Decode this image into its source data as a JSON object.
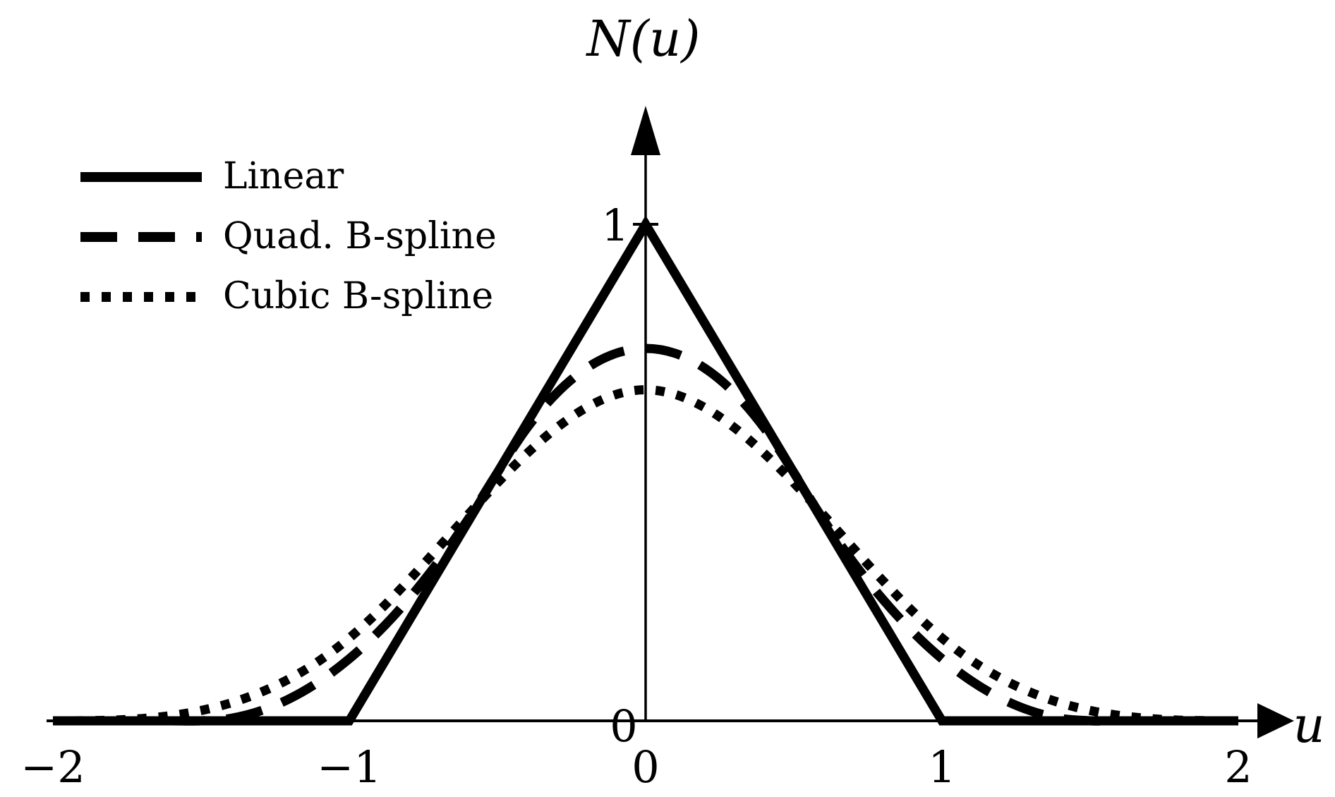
{
  "figure": {
    "background": "#ffffff",
    "axis_color": "#000000",
    "curve_color": "#000000"
  },
  "labels": {
    "y_axis_title": "N(u)",
    "x_axis_title": "u",
    "y_tick_1": "1",
    "y_tick_0": "0",
    "x_ticks": [
      "−2",
      "−1",
      "0",
      "1",
      "2"
    ]
  },
  "legend": {
    "position": "top-left",
    "items": [
      {
        "label": "Linear",
        "style": "solid"
      },
      {
        "label": "Quad. B-spline",
        "style": "dashed"
      },
      {
        "label": "Cubic B-spline",
        "style": "dotted"
      }
    ]
  },
  "chart_data": {
    "type": "line",
    "title": "",
    "xlabel": "u",
    "ylabel": "N(u)",
    "xlim": [
      -2,
      2
    ],
    "ylim": [
      0,
      1.25
    ],
    "x_tick_values": [
      -2,
      -1,
      0,
      1,
      2
    ],
    "y_tick_values": [
      0,
      1
    ],
    "grid": false,
    "legend_position": "top-left",
    "series": [
      {
        "name": "Linear",
        "style": "solid",
        "smooth": false,
        "peak": 1.0,
        "support": [
          -1,
          1
        ],
        "points": [
          [
            -2,
            0
          ],
          [
            -1,
            0
          ],
          [
            0,
            1
          ],
          [
            1,
            0
          ],
          [
            2,
            0
          ]
        ]
      },
      {
        "name": "Quad. B-spline",
        "style": "dashed",
        "smooth": true,
        "peak": 0.75,
        "support": [
          -1.5,
          1.5
        ],
        "points": [
          [
            -2,
            0
          ],
          [
            -1.9,
            0
          ],
          [
            -1.8,
            0
          ],
          [
            -1.7,
            0
          ],
          [
            -1.6,
            0
          ],
          [
            -1.5,
            0
          ],
          [
            -1.4,
            0.005
          ],
          [
            -1.3,
            0.02
          ],
          [
            -1.2,
            0.045
          ],
          [
            -1.1,
            0.08
          ],
          [
            -1,
            0.125
          ],
          [
            -0.9,
            0.18
          ],
          [
            -0.8,
            0.245
          ],
          [
            -0.7,
            0.32
          ],
          [
            -0.6,
            0.405
          ],
          [
            -0.5,
            0.5
          ],
          [
            -0.4,
            0.59
          ],
          [
            -0.3,
            0.66
          ],
          [
            -0.2,
            0.71
          ],
          [
            -0.1,
            0.74
          ],
          [
            0,
            0.75
          ],
          [
            0.1,
            0.74
          ],
          [
            0.2,
            0.71
          ],
          [
            0.3,
            0.66
          ],
          [
            0.4,
            0.59
          ],
          [
            0.5,
            0.5
          ],
          [
            0.6,
            0.405
          ],
          [
            0.7,
            0.32
          ],
          [
            0.8,
            0.245
          ],
          [
            0.9,
            0.18
          ],
          [
            1,
            0.125
          ],
          [
            1.1,
            0.08
          ],
          [
            1.2,
            0.045
          ],
          [
            1.3,
            0.02
          ],
          [
            1.4,
            0.005
          ],
          [
            1.5,
            0
          ],
          [
            1.6,
            0
          ],
          [
            1.7,
            0
          ],
          [
            1.8,
            0
          ],
          [
            1.9,
            0
          ],
          [
            2,
            0
          ]
        ]
      },
      {
        "name": "Cubic B-spline",
        "style": "dotted",
        "smooth": true,
        "peak": 0.6667,
        "support": [
          -2,
          2
        ],
        "points": [
          [
            -2,
            0
          ],
          [
            -1.9,
            0.0002
          ],
          [
            -1.8,
            0.0013
          ],
          [
            -1.7,
            0.0045
          ],
          [
            -1.6,
            0.0107
          ],
          [
            -1.5,
            0.0208
          ],
          [
            -1.4,
            0.036
          ],
          [
            -1.3,
            0.0572
          ],
          [
            -1.2,
            0.0853
          ],
          [
            -1.1,
            0.1215
          ],
          [
            -1,
            0.1667
          ],
          [
            -0.9,
            0.2212
          ],
          [
            -0.8,
            0.2827
          ],
          [
            -0.7,
            0.3482
          ],
          [
            -0.6,
            0.4147
          ],
          [
            -0.5,
            0.4792
          ],
          [
            -0.4,
            0.5387
          ],
          [
            -0.3,
            0.5902
          ],
          [
            -0.2,
            0.6307
          ],
          [
            -0.1,
            0.6572
          ],
          [
            0,
            0.6667
          ],
          [
            0.1,
            0.6572
          ],
          [
            0.2,
            0.6307
          ],
          [
            0.3,
            0.5902
          ],
          [
            0.4,
            0.5387
          ],
          [
            0.5,
            0.4792
          ],
          [
            0.6,
            0.4147
          ],
          [
            0.7,
            0.3482
          ],
          [
            0.8,
            0.2827
          ],
          [
            0.9,
            0.2212
          ],
          [
            1,
            0.1667
          ],
          [
            1.1,
            0.1215
          ],
          [
            1.2,
            0.0853
          ],
          [
            1.3,
            0.0572
          ],
          [
            1.4,
            0.036
          ],
          [
            1.5,
            0.0208
          ],
          [
            1.6,
            0.0107
          ],
          [
            1.7,
            0.0045
          ],
          [
            1.8,
            0.0013
          ],
          [
            1.9,
            0.0002
          ],
          [
            2,
            0
          ]
        ]
      }
    ]
  }
}
